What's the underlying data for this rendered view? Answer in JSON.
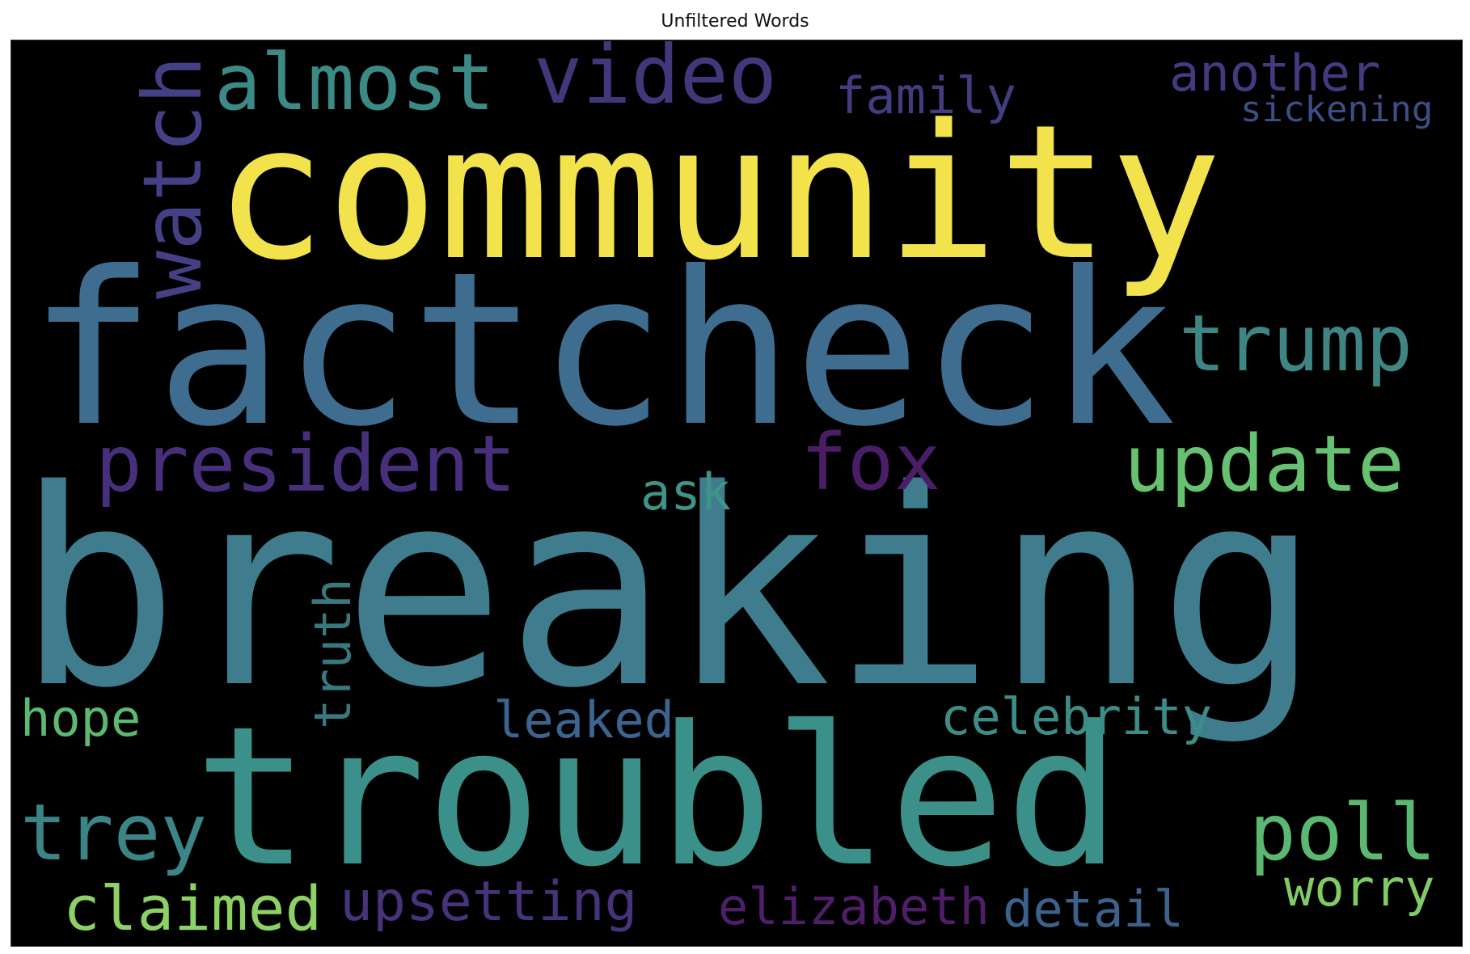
{
  "chart_data": {
    "type": "wordcloud",
    "title": "Unfiltered Words",
    "background": "#000000",
    "colormap": "viridis",
    "words": [
      {
        "text": "breaking",
        "color": "#3e7c8e"
      },
      {
        "text": "community",
        "color": "#f2e34d"
      },
      {
        "text": "factcheck",
        "color": "#3f6d8f"
      },
      {
        "text": "troubled",
        "color": "#3b9189"
      },
      {
        "text": "almost",
        "color": "#3c8a86"
      },
      {
        "text": "video",
        "color": "#44367a"
      },
      {
        "text": "watch",
        "color": "#453f86"
      },
      {
        "text": "family",
        "color": "#433c7f"
      },
      {
        "text": "another",
        "color": "#443a80"
      },
      {
        "text": "sickening",
        "color": "#3d4d86"
      },
      {
        "text": "trump",
        "color": "#3e8583"
      },
      {
        "text": "president",
        "color": "#472f7c"
      },
      {
        "text": "fox",
        "color": "#4b1d67"
      },
      {
        "text": "update",
        "color": "#66c270"
      },
      {
        "text": "ask",
        "color": "#3f9488"
      },
      {
        "text": "truth",
        "color": "#37797f"
      },
      {
        "text": "hope",
        "color": "#5cb96f"
      },
      {
        "text": "leaked",
        "color": "#3c6490"
      },
      {
        "text": "celebrity",
        "color": "#3b8d88"
      },
      {
        "text": "trey",
        "color": "#3b8587"
      },
      {
        "text": "poll",
        "color": "#5bb871"
      },
      {
        "text": "claimed",
        "color": "#8dd164"
      },
      {
        "text": "upsetting",
        "color": "#46337a"
      },
      {
        "text": "elizabeth",
        "color": "#4e1e68"
      },
      {
        "text": "detail",
        "color": "#3c628c"
      },
      {
        "text": "worry",
        "color": "#7fcc66"
      }
    ]
  }
}
